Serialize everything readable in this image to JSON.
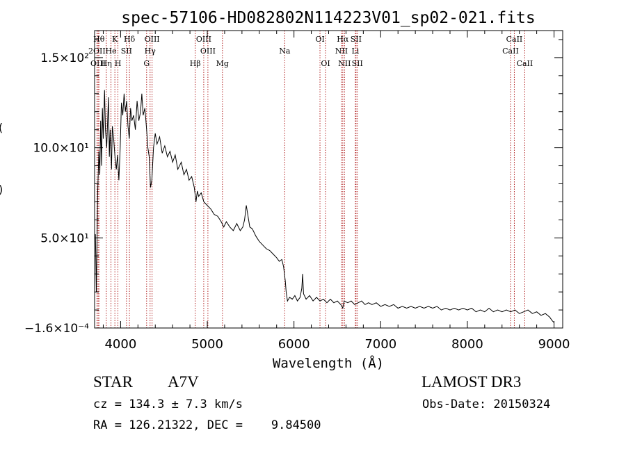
{
  "chart_data": {
    "type": "line",
    "title": "spec-57106-HD082802N114223V01_sp02-021.fits",
    "xlabel": "Wavelength (Å)",
    "ylabel": "",
    "xlim": [
      3700,
      9100
    ],
    "ylim": [
      0,
      165
    ],
    "xticks": [
      {
        "value": 4000,
        "label": "4000"
      },
      {
        "value": 5000,
        "label": "5000"
      },
      {
        "value": 6000,
        "label": "6000"
      },
      {
        "value": 7000,
        "label": "7000"
      },
      {
        "value": 8000,
        "label": "8000"
      },
      {
        "value": 9000,
        "label": "9000"
      }
    ],
    "yticks": [
      {
        "value": 0,
        "label": "−1.6×10⁻⁴"
      },
      {
        "value": 50,
        "label": "5.0×10¹"
      },
      {
        "value": 100,
        "label": "10.0×10¹"
      },
      {
        "value": 150,
        "label": "1.5×10²"
      }
    ],
    "ylabel_fragments": [
      "(",
      ")"
    ],
    "series": [
      {
        "name": "flux",
        "color": "#000000",
        "points": [
          [
            3710,
            52
          ],
          [
            3720,
            20
          ],
          [
            3735,
            75
          ],
          [
            3750,
            98
          ],
          [
            3760,
            85
          ],
          [
            3770,
            115
          ],
          [
            3780,
            90
          ],
          [
            3790,
            122
          ],
          [
            3800,
            105
          ],
          [
            3815,
            132
          ],
          [
            3825,
            110
          ],
          [
            3840,
            100
          ],
          [
            3860,
            128
          ],
          [
            3870,
            95
          ],
          [
            3880,
            110
          ],
          [
            3895,
            88
          ],
          [
            3905,
            112
          ],
          [
            3920,
            105
          ],
          [
            3935,
            95
          ],
          [
            3950,
            88
          ],
          [
            3965,
            96
          ],
          [
            3980,
            82
          ],
          [
            3995,
            100
          ],
          [
            4010,
            125
          ],
          [
            4025,
            118
          ],
          [
            4040,
            130
          ],
          [
            4055,
            120
          ],
          [
            4070,
            126
          ],
          [
            4085,
            112
          ],
          [
            4100,
            105
          ],
          [
            4115,
            122
          ],
          [
            4130,
            115
          ],
          [
            4150,
            118
          ],
          [
            4170,
            110
          ],
          [
            4190,
            126
          ],
          [
            4210,
            115
          ],
          [
            4230,
            120
          ],
          [
            4245,
            130
          ],
          [
            4260,
            118
          ],
          [
            4280,
            122
          ],
          [
            4300,
            110
          ],
          [
            4315,
            100
          ],
          [
            4330,
            95
          ],
          [
            4345,
            78
          ],
          [
            4360,
            82
          ],
          [
            4380,
            100
          ],
          [
            4400,
            108
          ],
          [
            4420,
            102
          ],
          [
            4450,
            106
          ],
          [
            4480,
            97
          ],
          [
            4510,
            101
          ],
          [
            4540,
            95
          ],
          [
            4570,
            98
          ],
          [
            4600,
            92
          ],
          [
            4630,
            96
          ],
          [
            4660,
            88
          ],
          [
            4700,
            92
          ],
          [
            4730,
            85
          ],
          [
            4760,
            88
          ],
          [
            4790,
            82
          ],
          [
            4820,
            84
          ],
          [
            4850,
            78
          ],
          [
            4870,
            70
          ],
          [
            4885,
            76
          ],
          [
            4900,
            73
          ],
          [
            4930,
            75
          ],
          [
            4960,
            70
          ],
          [
            5000,
            68
          ],
          [
            5040,
            66
          ],
          [
            5080,
            63
          ],
          [
            5120,
            62
          ],
          [
            5160,
            59
          ],
          [
            5190,
            56
          ],
          [
            5220,
            59
          ],
          [
            5260,
            56
          ],
          [
            5300,
            54
          ],
          [
            5340,
            58
          ],
          [
            5380,
            54
          ],
          [
            5410,
            56
          ],
          [
            5430,
            60
          ],
          [
            5450,
            68
          ],
          [
            5470,
            62
          ],
          [
            5490,
            56
          ],
          [
            5520,
            55
          ],
          [
            5560,
            51
          ],
          [
            5600,
            48
          ],
          [
            5640,
            46
          ],
          [
            5680,
            44
          ],
          [
            5720,
            43
          ],
          [
            5760,
            41
          ],
          [
            5800,
            39
          ],
          [
            5830,
            37
          ],
          [
            5860,
            38
          ],
          [
            5880,
            34
          ],
          [
            5900,
            26
          ],
          [
            5910,
            20
          ],
          [
            5925,
            15
          ],
          [
            5950,
            17
          ],
          [
            5980,
            16
          ],
          [
            6010,
            18
          ],
          [
            6040,
            15
          ],
          [
            6070,
            17
          ],
          [
            6090,
            22
          ],
          [
            6100,
            30
          ],
          [
            6110,
            19
          ],
          [
            6140,
            16
          ],
          [
            6180,
            18
          ],
          [
            6220,
            15
          ],
          [
            6260,
            17
          ],
          [
            6300,
            15
          ],
          [
            6340,
            16
          ],
          [
            6380,
            14
          ],
          [
            6420,
            16
          ],
          [
            6460,
            14
          ],
          [
            6500,
            15
          ],
          [
            6540,
            13
          ],
          [
            6563,
            11
          ],
          [
            6580,
            15
          ],
          [
            6620,
            14
          ],
          [
            6660,
            15
          ],
          [
            6700,
            13
          ],
          [
            6740,
            14
          ],
          [
            6780,
            15
          ],
          [
            6820,
            13
          ],
          [
            6860,
            14
          ],
          [
            6900,
            13
          ],
          [
            6950,
            14
          ],
          [
            7000,
            12
          ],
          [
            7050,
            13
          ],
          [
            7100,
            12
          ],
          [
            7150,
            13
          ],
          [
            7200,
            11
          ],
          [
            7250,
            12
          ],
          [
            7300,
            11
          ],
          [
            7350,
            12
          ],
          [
            7400,
            11
          ],
          [
            7450,
            12
          ],
          [
            7500,
            11
          ],
          [
            7550,
            12
          ],
          [
            7600,
            11
          ],
          [
            7650,
            12
          ],
          [
            7700,
            10
          ],
          [
            7750,
            11
          ],
          [
            7800,
            10
          ],
          [
            7850,
            11
          ],
          [
            7900,
            10
          ],
          [
            7950,
            11
          ],
          [
            8000,
            10
          ],
          [
            8050,
            11
          ],
          [
            8100,
            9
          ],
          [
            8150,
            10
          ],
          [
            8200,
            9
          ],
          [
            8250,
            11
          ],
          [
            8300,
            9
          ],
          [
            8350,
            10
          ],
          [
            8400,
            9
          ],
          [
            8450,
            10
          ],
          [
            8500,
            9
          ],
          [
            8550,
            10
          ],
          [
            8600,
            8
          ],
          [
            8650,
            9
          ],
          [
            8700,
            10
          ],
          [
            8750,
            8
          ],
          [
            8800,
            9
          ],
          [
            8850,
            7
          ],
          [
            8900,
            8
          ],
          [
            8950,
            6
          ],
          [
            8980,
            4
          ],
          [
            9000,
            3
          ]
        ]
      }
    ],
    "lines": [
      {
        "name": "Hθ",
        "wave": 3750,
        "row": 0
      },
      {
        "name": "2OII",
        "wave": 3727,
        "row": 1
      },
      {
        "name": "OIII",
        "wave": 3740,
        "row": 2
      },
      {
        "name": "He",
        "wave": 3889,
        "row": 1
      },
      {
        "name": "Hη",
        "wave": 3835,
        "row": 2
      },
      {
        "name": "K",
        "wave": 3934,
        "row": 0
      },
      {
        "name": "SII",
        "wave": 4068,
        "row": 1
      },
      {
        "name": "H",
        "wave": 3969,
        "row": 2
      },
      {
        "name": "Hδ",
        "wave": 4102,
        "row": 0
      },
      {
        "name": "OIII",
        "wave": 4363,
        "row": 0
      },
      {
        "name": "Hγ",
        "wave": 4340,
        "row": 1
      },
      {
        "name": "G",
        "wave": 4300,
        "row": 2
      },
      {
        "name": "Hβ",
        "wave": 4861,
        "row": 2
      },
      {
        "name": "OIII",
        "wave": 4959,
        "row": 0
      },
      {
        "name": "OIII",
        "wave": 5007,
        "row": 1
      },
      {
        "name": "Mg",
        "wave": 5175,
        "row": 2
      },
      {
        "name": "Na",
        "wave": 5893,
        "row": 1
      },
      {
        "name": "OI",
        "wave": 6300,
        "row": 0
      },
      {
        "name": "OI",
        "wave": 6364,
        "row": 2
      },
      {
        "name": "Hα",
        "wave": 6563,
        "row": 0
      },
      {
        "name": "SII",
        "wave": 6716,
        "row": 0
      },
      {
        "name": "NII",
        "wave": 6548,
        "row": 1
      },
      {
        "name": "Li",
        "wave": 6708,
        "row": 1
      },
      {
        "name": "NII",
        "wave": 6583,
        "row": 2
      },
      {
        "name": "SII",
        "wave": 6731,
        "row": 2
      },
      {
        "name": "CaII",
        "wave": 8542,
        "row": 0
      },
      {
        "name": "CaII",
        "wave": 8498,
        "row": 1
      },
      {
        "name": "CaII",
        "wave": 8662,
        "row": 2
      }
    ]
  },
  "info": {
    "object_type": "STAR",
    "subclass": "A7V",
    "survey": "LAMOST DR3",
    "redshift": "cz = 134.3 ± 7.3 km/s",
    "obs_date": "Obs-Date: 20150324",
    "coords": "RA = 126.21322, DEC =    9.84500"
  },
  "colors": {
    "axis": "#000000",
    "spectrum": "#000000",
    "line_marker": "#b22222"
  }
}
